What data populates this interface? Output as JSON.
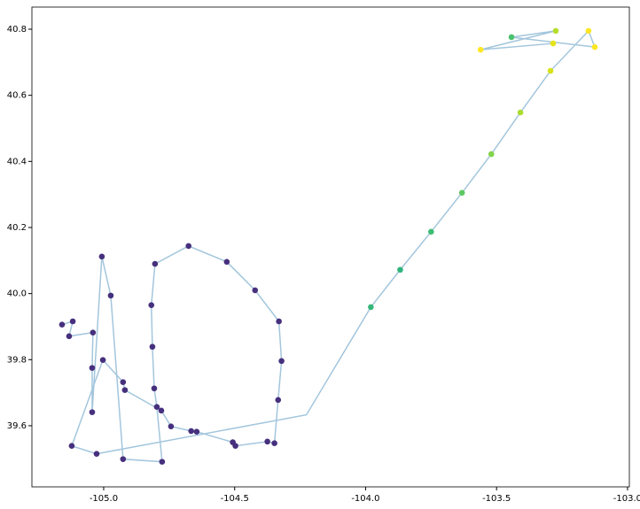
{
  "chart_data": {
    "type": "scatter",
    "xlim": [
      -105.274,
      -102.993
    ],
    "ylim": [
      39.415,
      40.867
    ],
    "xticks": [
      {
        "value": -105.0,
        "label": "-105.0"
      },
      -104.5,
      {
        "value": -104.0,
        "label": "-104.0"
      },
      -103.5,
      {
        "value": -103.0,
        "label": "-103.0"
      }
    ],
    "yticks": [
      39.6,
      39.8,
      {
        "value": 40.0,
        "label": "40.0"
      },
      40.2,
      40.4,
      40.6,
      40.8
    ],
    "line": {
      "color": "#a3c6dc",
      "x": [
        -105.159,
        -105.118,
        -105.132,
        -105.041,
        -105.044,
        -105.044,
        -105.007,
        -104.973,
        -104.926,
        -104.777,
        -104.797,
        -104.807,
        -104.814,
        -104.818,
        -104.804,
        -104.676,
        -104.53,
        -104.422,
        -104.331,
        -104.321,
        -104.334,
        -104.348,
        -104.375,
        -104.497,
        -104.507,
        -104.645,
        -104.666,
        -104.743,
        -104.78,
        -104.919,
        -104.926,
        -105.003,
        -105.122,
        -105.027,
        -104.226,
        -103.98,
        -103.868,
        -103.75,
        -103.632,
        -103.52,
        -103.409,
        -103.294,
        -103.149,
        -103.125,
        -103.443,
        -103.274,
        -103.561,
        -103.284
      ],
      "y": [
        39.906,
        39.916,
        39.871,
        39.882,
        39.775,
        39.641,
        40.112,
        39.994,
        39.499,
        39.491,
        39.657,
        39.713,
        39.839,
        39.965,
        40.09,
        40.144,
        40.096,
        40.01,
        39.916,
        39.796,
        39.678,
        39.547,
        39.552,
        39.539,
        39.55,
        39.582,
        39.584,
        39.598,
        39.646,
        39.708,
        39.732,
        39.799,
        39.539,
        39.515,
        39.633,
        39.959,
        40.072,
        40.187,
        40.305,
        40.422,
        40.548,
        40.674,
        40.795,
        40.746,
        40.776,
        40.795,
        40.738,
        40.757
      ]
    },
    "series": [
      {
        "x": [
          -105.159,
          -105.118,
          -105.132,
          -105.041,
          -105.044,
          -105.044,
          -105.007,
          -104.973,
          -104.926,
          -104.777,
          -104.797,
          -104.807,
          -104.814,
          -104.818,
          -104.804,
          -104.676,
          -104.53,
          -104.422,
          -104.331,
          -104.321,
          -104.334,
          -104.348,
          -104.375,
          -104.497,
          -104.507,
          -104.645,
          -104.666,
          -104.743,
          -104.78,
          -104.919,
          -104.926,
          -105.003,
          -105.122,
          -105.027,
          -103.98,
          -103.868,
          -103.75,
          -103.632,
          -103.52,
          -103.409,
          -103.294,
          -103.149,
          -103.125,
          -103.443,
          -103.274,
          -103.561,
          -103.284
        ],
        "y": [
          39.906,
          39.916,
          39.871,
          39.882,
          39.775,
          39.641,
          40.112,
          39.994,
          39.499,
          39.491,
          39.657,
          39.713,
          39.839,
          39.965,
          40.09,
          40.144,
          40.096,
          40.01,
          39.916,
          39.796,
          39.678,
          39.547,
          39.552,
          39.539,
          39.55,
          39.582,
          39.584,
          39.598,
          39.646,
          39.708,
          39.732,
          39.799,
          39.539,
          39.515,
          39.959,
          40.072,
          40.187,
          40.305,
          40.422,
          40.548,
          40.674,
          40.795,
          40.746,
          40.776,
          40.795,
          40.738,
          40.757
        ],
        "colors": [
          "#46307e",
          "#46307e",
          "#46307e",
          "#46307e",
          "#46307e",
          "#46307e",
          "#46307e",
          "#46307e",
          "#46307e",
          "#46307e",
          "#46307e",
          "#46307e",
          "#46307e",
          "#46307e",
          "#46307e",
          "#46307e",
          "#46307e",
          "#46307e",
          "#46307e",
          "#46307e",
          "#46307e",
          "#46307e",
          "#46307e",
          "#46307e",
          "#46307e",
          "#46307e",
          "#46307e",
          "#46307e",
          "#46307e",
          "#46307e",
          "#46307e",
          "#46307e",
          "#46307e",
          "#46307e",
          "#35b779",
          "#2fb47c",
          "#3dbc74",
          "#5ec962",
          "#84d44b",
          "#addc30",
          "#d8e219",
          "#fde725",
          "#fde725",
          "#4ac16d",
          "#b5de2b",
          "#fde725",
          "#e5e419"
        ]
      }
    ]
  }
}
